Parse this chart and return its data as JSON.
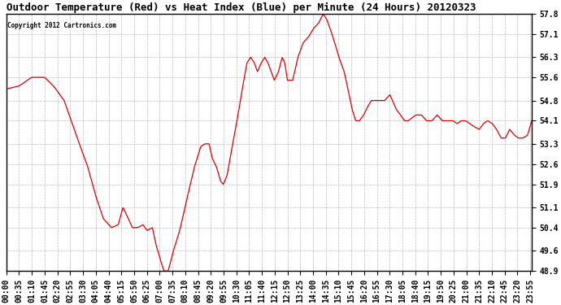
{
  "title": "Outdoor Temperature (Red) vs Heat Index (Blue) per Minute (24 Hours) 20120323",
  "copyright": "Copyright 2012 Cartronics.com",
  "ylim": [
    48.9,
    57.8
  ],
  "yticks": [
    57.8,
    57.1,
    56.3,
    55.6,
    54.8,
    54.1,
    53.3,
    52.6,
    51.9,
    51.1,
    50.4,
    49.6,
    48.9
  ],
  "line_color": "#dd0000",
  "bg_color": "#ffffff",
  "grid_color": "#bbbbbb",
  "title_fontsize": 9,
  "tick_fontsize": 7,
  "xtick_labels": [
    "00:00",
    "00:35",
    "01:10",
    "01:45",
    "02:20",
    "02:55",
    "03:30",
    "04:05",
    "04:40",
    "05:15",
    "05:50",
    "06:25",
    "07:00",
    "07:35",
    "08:10",
    "08:45",
    "09:20",
    "09:55",
    "10:30",
    "11:05",
    "11:40",
    "12:15",
    "12:50",
    "13:25",
    "14:00",
    "14:35",
    "15:10",
    "15:45",
    "16:20",
    "16:55",
    "17:30",
    "18:05",
    "18:40",
    "19:15",
    "19:50",
    "20:25",
    "21:00",
    "21:35",
    "22:10",
    "22:45",
    "23:20",
    "23:55"
  ],
  "control_points": [
    [
      0.0,
      55.2
    ],
    [
      0.024,
      55.3
    ],
    [
      0.048,
      55.6
    ],
    [
      0.073,
      55.6
    ],
    [
      0.09,
      55.3
    ],
    [
      0.11,
      54.8
    ],
    [
      0.135,
      53.5
    ],
    [
      0.155,
      52.5
    ],
    [
      0.17,
      51.5
    ],
    [
      0.185,
      50.7
    ],
    [
      0.2,
      50.4
    ],
    [
      0.213,
      50.5
    ],
    [
      0.222,
      51.1
    ],
    [
      0.23,
      50.8
    ],
    [
      0.24,
      50.4
    ],
    [
      0.25,
      50.4
    ],
    [
      0.26,
      50.5
    ],
    [
      0.268,
      50.3
    ],
    [
      0.278,
      50.4
    ],
    [
      0.285,
      49.8
    ],
    [
      0.293,
      49.3
    ],
    [
      0.3,
      48.9
    ],
    [
      0.308,
      48.9
    ],
    [
      0.318,
      49.6
    ],
    [
      0.33,
      50.3
    ],
    [
      0.345,
      51.5
    ],
    [
      0.358,
      52.5
    ],
    [
      0.37,
      53.2
    ],
    [
      0.378,
      53.3
    ],
    [
      0.386,
      53.3
    ],
    [
      0.392,
      52.8
    ],
    [
      0.4,
      52.5
    ],
    [
      0.408,
      52.0
    ],
    [
      0.413,
      51.9
    ],
    [
      0.42,
      52.2
    ],
    [
      0.43,
      53.2
    ],
    [
      0.44,
      54.2
    ],
    [
      0.45,
      55.3
    ],
    [
      0.458,
      56.1
    ],
    [
      0.465,
      56.3
    ],
    [
      0.472,
      56.1
    ],
    [
      0.478,
      55.8
    ],
    [
      0.485,
      56.1
    ],
    [
      0.492,
      56.3
    ],
    [
      0.498,
      56.1
    ],
    [
      0.504,
      55.8
    ],
    [
      0.51,
      55.5
    ],
    [
      0.518,
      55.8
    ],
    [
      0.525,
      56.3
    ],
    [
      0.53,
      56.1
    ],
    [
      0.535,
      55.5
    ],
    [
      0.545,
      55.5
    ],
    [
      0.555,
      56.3
    ],
    [
      0.565,
      56.8
    ],
    [
      0.575,
      57.0
    ],
    [
      0.585,
      57.3
    ],
    [
      0.595,
      57.5
    ],
    [
      0.603,
      57.8
    ],
    [
      0.61,
      57.6
    ],
    [
      0.618,
      57.2
    ],
    [
      0.625,
      56.8
    ],
    [
      0.633,
      56.3
    ],
    [
      0.643,
      55.8
    ],
    [
      0.65,
      55.2
    ],
    [
      0.658,
      54.5
    ],
    [
      0.665,
      54.1
    ],
    [
      0.672,
      54.1
    ],
    [
      0.68,
      54.3
    ],
    [
      0.688,
      54.6
    ],
    [
      0.695,
      54.8
    ],
    [
      0.703,
      54.8
    ],
    [
      0.71,
      54.8
    ],
    [
      0.72,
      54.8
    ],
    [
      0.73,
      55.0
    ],
    [
      0.735,
      54.8
    ],
    [
      0.742,
      54.5
    ],
    [
      0.75,
      54.3
    ],
    [
      0.758,
      54.1
    ],
    [
      0.765,
      54.1
    ],
    [
      0.772,
      54.2
    ],
    [
      0.78,
      54.3
    ],
    [
      0.79,
      54.3
    ],
    [
      0.8,
      54.1
    ],
    [
      0.81,
      54.1
    ],
    [
      0.82,
      54.3
    ],
    [
      0.83,
      54.1
    ],
    [
      0.84,
      54.1
    ],
    [
      0.85,
      54.1
    ],
    [
      0.858,
      54.0
    ],
    [
      0.866,
      54.1
    ],
    [
      0.874,
      54.1
    ],
    [
      0.882,
      54.0
    ],
    [
      0.89,
      53.9
    ],
    [
      0.9,
      53.8
    ],
    [
      0.908,
      54.0
    ],
    [
      0.916,
      54.1
    ],
    [
      0.925,
      54.0
    ],
    [
      0.933,
      53.8
    ],
    [
      0.942,
      53.5
    ],
    [
      0.95,
      53.5
    ],
    [
      0.958,
      53.8
    ],
    [
      0.967,
      53.6
    ],
    [
      0.975,
      53.5
    ],
    [
      0.983,
      53.5
    ],
    [
      0.992,
      53.6
    ],
    [
      1.0,
      54.1
    ]
  ]
}
